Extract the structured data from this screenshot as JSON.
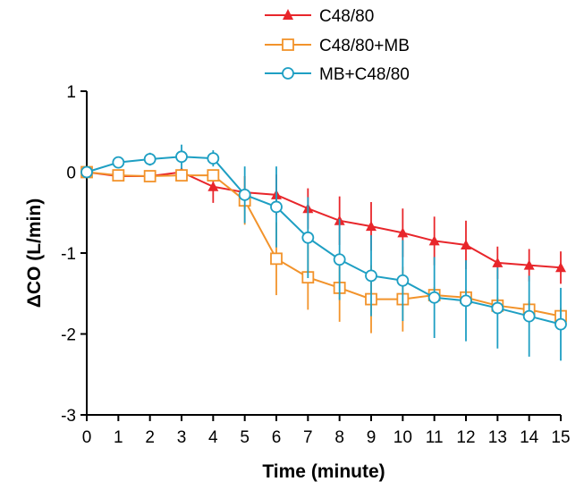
{
  "chart_data": {
    "type": "line",
    "title": "",
    "xlabel": "Time (minute)",
    "ylabel": "ΔCO (L/min)",
    "x": [
      0,
      1,
      2,
      3,
      4,
      5,
      6,
      7,
      8,
      9,
      10,
      11,
      12,
      13,
      14,
      15
    ],
    "xticks": [
      "0",
      "1",
      "2",
      "3",
      "4",
      "5",
      "6",
      "7",
      "8",
      "9",
      "10",
      "11",
      "12",
      "13",
      "14",
      "15"
    ],
    "xlim": [
      0,
      15
    ],
    "ylim": [
      -3,
      1
    ],
    "yticks": [
      "1",
      "0",
      "-1",
      "-2",
      "-3"
    ],
    "grid": false,
    "legend_position": "top",
    "series": [
      {
        "name": "C48/80",
        "color": "#e8262b",
        "marker": "filled-triangle",
        "values": [
          0,
          -0.05,
          -0.05,
          0,
          -0.18,
          -0.25,
          -0.28,
          -0.45,
          -0.6,
          -0.67,
          -0.75,
          -0.85,
          -0.9,
          -1.12,
          -1.15,
          -1.18
        ],
        "errors": [
          0.03,
          0.04,
          0.04,
          0.05,
          0.2,
          0.2,
          0.25,
          0.25,
          0.3,
          0.3,
          0.3,
          0.3,
          0.3,
          0.2,
          0.2,
          0.2
        ]
      },
      {
        "name": "C48/80+MB",
        "color": "#f2932b",
        "marker": "open-square",
        "values": [
          0,
          -0.04,
          -0.05,
          -0.04,
          -0.04,
          -0.35,
          -1.07,
          -1.3,
          -1.43,
          -1.57,
          -1.57,
          -1.52,
          -1.55,
          -1.65,
          -1.7,
          -1.78
        ],
        "errors": [
          0.03,
          0.03,
          0.03,
          0.05,
          0.05,
          0.3,
          0.45,
          0.4,
          0.42,
          0.42,
          0.4,
          0.1,
          0.1,
          0.1,
          0.1,
          0.1
        ]
      },
      {
        "name": "MB+C48/80",
        "color": "#1e9fc3",
        "marker": "open-circle",
        "values": [
          0,
          0.12,
          0.16,
          0.19,
          0.17,
          -0.28,
          -0.43,
          -0.81,
          -1.08,
          -1.28,
          -1.34,
          -1.55,
          -1.59,
          -1.68,
          -1.78,
          -1.88
        ],
        "errors": [
          0.03,
          0.05,
          0.08,
          0.15,
          0.1,
          0.35,
          0.5,
          0.5,
          0.5,
          0.5,
          0.5,
          0.5,
          0.5,
          0.5,
          0.5,
          0.45
        ]
      }
    ]
  }
}
